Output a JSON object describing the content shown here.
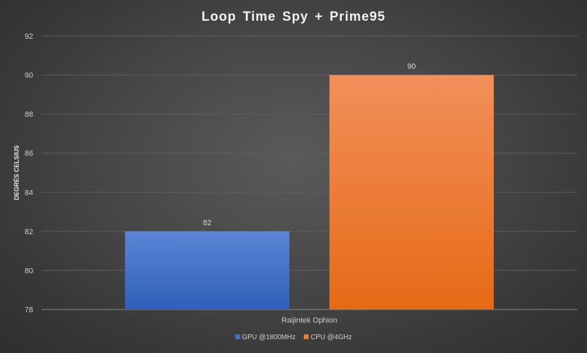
{
  "chart_data": {
    "type": "bar",
    "title": "Loop Time Spy + Prime95",
    "xlabel": "",
    "ylabel": "DEGRÉS CELSIUS",
    "categories": [
      "Raijintek Ophion"
    ],
    "series": [
      {
        "name": "GPU @1800MHz",
        "values": [
          82
        ],
        "color": "#4472c4"
      },
      {
        "name": "CPU @4GHz",
        "values": [
          90
        ],
        "color": "#ed7d31"
      }
    ],
    "ylim": [
      78,
      92
    ],
    "yticks": [
      78,
      80,
      82,
      84,
      86,
      88,
      90,
      92
    ],
    "grid": true,
    "legend_position": "bottom",
    "data_labels": true
  }
}
